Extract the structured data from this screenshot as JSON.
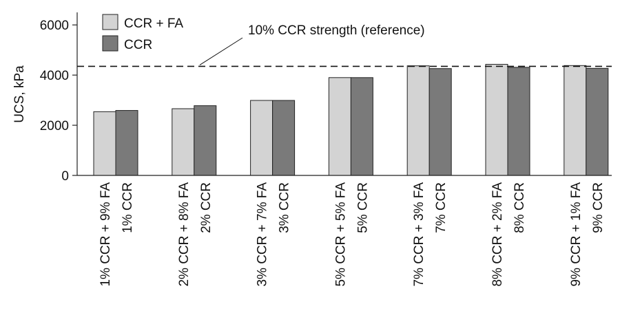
{
  "chart_data": {
    "type": "bar",
    "title": "",
    "xlabel": "",
    "ylabel": "UCS, kPa",
    "ylim": [
      0,
      6500
    ],
    "yticks": [
      0,
      2000,
      4000,
      6000
    ],
    "grid": false,
    "legend_position": "top-left",
    "groups": [
      {
        "labels": [
          "1% CCR + 9% FA",
          "1% CCR"
        ],
        "values": [
          2540,
          2590
        ]
      },
      {
        "labels": [
          "2% CCR + 8% FA",
          "2% CCR"
        ],
        "values": [
          2660,
          2780
        ]
      },
      {
        "labels": [
          "3% CCR + 7% FA",
          "3% CCR"
        ],
        "values": [
          2990,
          2990
        ]
      },
      {
        "labels": [
          "5% CCR + 5% FA",
          "5% CCR"
        ],
        "values": [
          3900,
          3900
        ]
      },
      {
        "labels": [
          "7% CCR + 3% FA",
          "7% CCR"
        ],
        "values": [
          4370,
          4260
        ]
      },
      {
        "labels": [
          "8% CCR + 2% FA",
          "8% CCR"
        ],
        "values": [
          4430,
          4310
        ]
      },
      {
        "labels": [
          "9% CCR + 1% FA",
          "9% CCR"
        ],
        "values": [
          4380,
          4270
        ]
      }
    ],
    "series": [
      {
        "name": "CCR + FA",
        "color": "#d3d3d3"
      },
      {
        "name": "CCR",
        "color": "#7a7a7a"
      }
    ],
    "reference_line": {
      "label": "10% CCR strength (reference)",
      "value": 4350,
      "style": "dashed"
    }
  }
}
